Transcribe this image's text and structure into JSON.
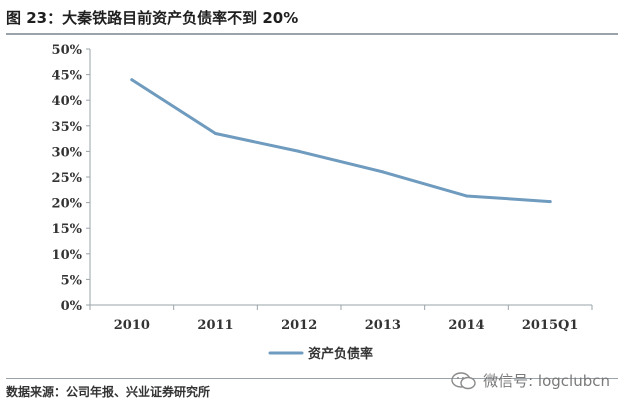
{
  "title": "图 23：大秦铁路目前资产负债率不到 20%",
  "source": "数据来源：公司年报、兴业证券研究所",
  "watermark": {
    "text": "微信号: logclubcn",
    "icon": "wechat-icon"
  },
  "colors": {
    "line": "#6f9bbf",
    "axis": "#9aa3aa",
    "text": "#333333"
  },
  "chart_data": {
    "type": "line",
    "categories": [
      "2010",
      "2011",
      "2012",
      "2013",
      "2014",
      "2015Q1"
    ],
    "series": [
      {
        "name": "资产负债率",
        "values": [
          0.44,
          0.335,
          0.3,
          0.26,
          0.213,
          0.202
        ]
      }
    ],
    "y_ticks": [
      "0%",
      "5%",
      "10%",
      "15%",
      "20%",
      "25%",
      "30%",
      "35%",
      "40%",
      "45%",
      "50%"
    ],
    "ylim": [
      0,
      0.5
    ],
    "grid": false,
    "legend": "bottom-center"
  }
}
